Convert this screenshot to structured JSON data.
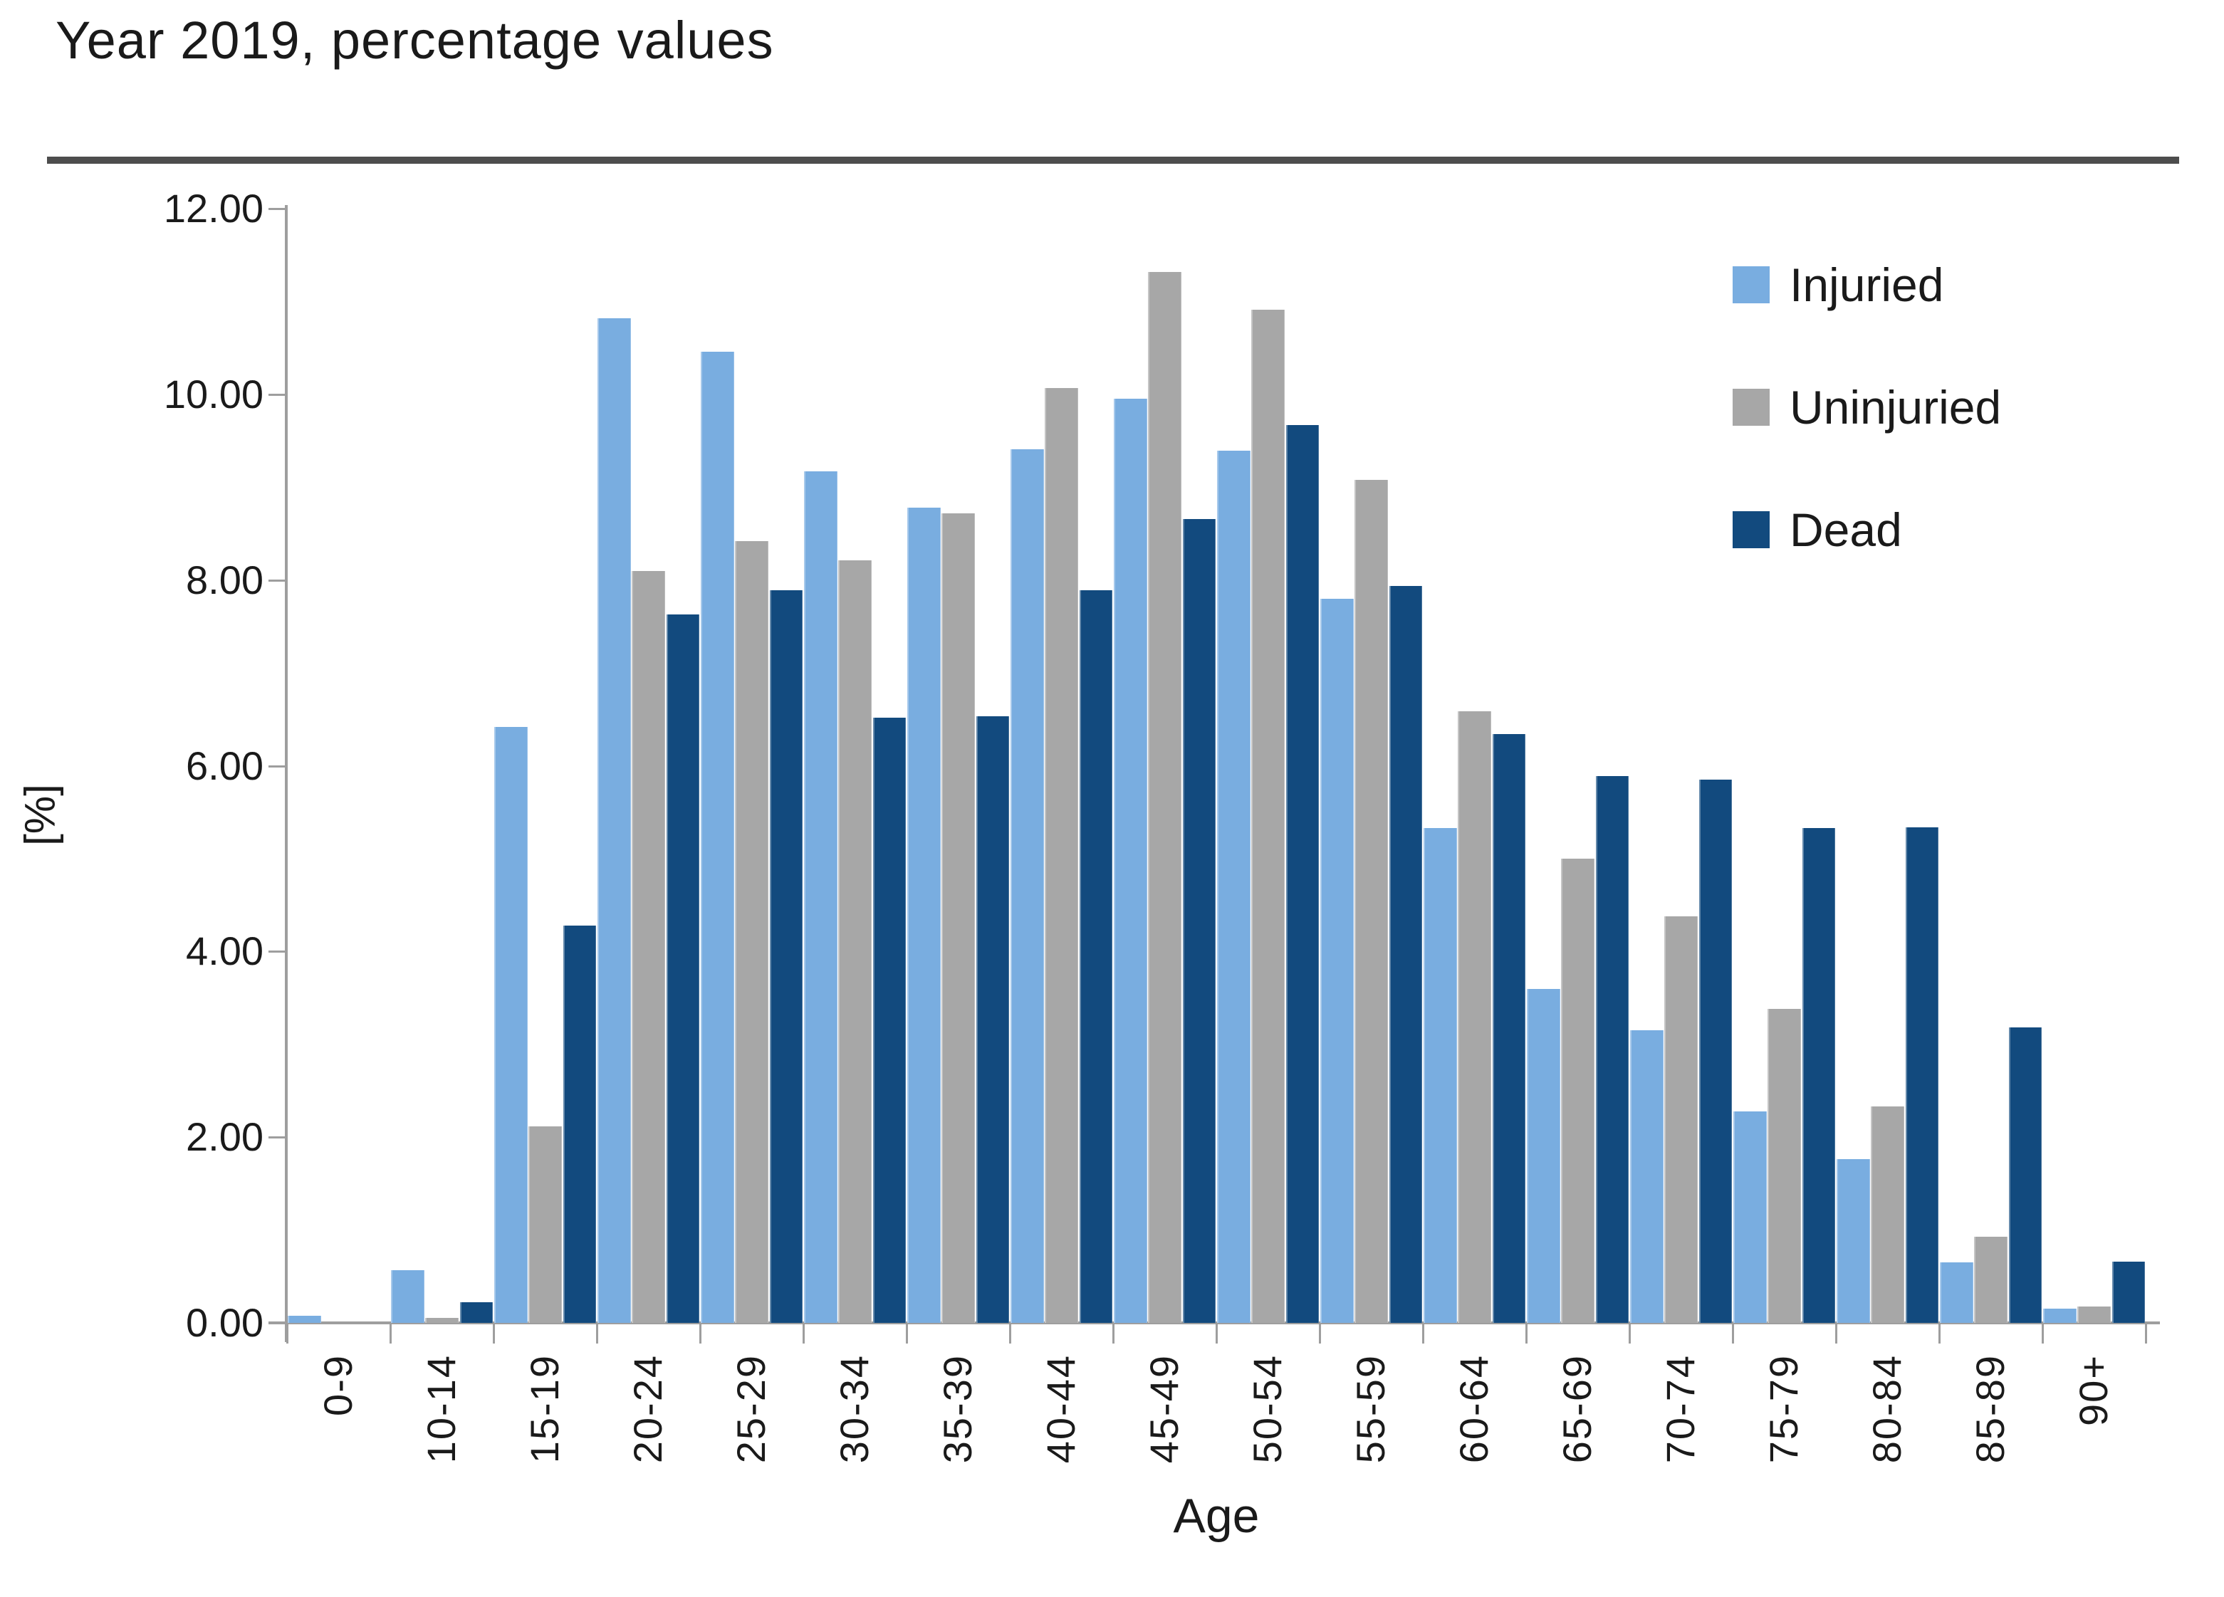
{
  "title": "Year 2019, percentage values",
  "chart_data": {
    "type": "bar",
    "title": "Year 2019, percentage values",
    "xlabel": "Age",
    "ylabel": "[%]",
    "ylim": [
      0,
      12
    ],
    "ytick_step": 2,
    "ytick_labels": [
      "12.00",
      "10.00",
      "8.00",
      "6.00",
      "4.00",
      "2.00",
      "0.00"
    ],
    "grid": false,
    "legend_position": "top-right",
    "categories": [
      "0-9",
      "10-14",
      "15-19",
      "20-24",
      "25-29",
      "30-34",
      "35-39",
      "40-44",
      "45-49",
      "50-54",
      "55-59",
      "60-64",
      "65-69",
      "70-74",
      "75-79",
      "80-84",
      "85-89",
      "90+"
    ],
    "series": [
      {
        "name": "Injuried",
        "color": "#79ADE0",
        "values": [
          0.08,
          0.57,
          6.42,
          10.82,
          10.46,
          9.17,
          8.78,
          9.41,
          9.95,
          9.39,
          7.8,
          5.33,
          3.6,
          3.15,
          2.28,
          1.76,
          0.65,
          0.15
        ]
      },
      {
        "name": "Uninjuried",
        "color": "#A7A7A7",
        "values": [
          0.0,
          0.05,
          2.12,
          8.1,
          8.42,
          8.21,
          8.72,
          10.07,
          11.32,
          10.91,
          9.08,
          6.59,
          5.0,
          4.38,
          3.38,
          2.33,
          0.93,
          0.18
        ]
      },
      {
        "name": "Dead",
        "color": "#124A7E",
        "values": [
          0.0,
          0.22,
          4.28,
          7.63,
          7.89,
          6.52,
          6.53,
          7.89,
          8.66,
          9.67,
          7.94,
          6.34,
          5.89,
          5.85,
          5.33,
          5.34,
          3.18,
          0.66
        ]
      }
    ]
  }
}
